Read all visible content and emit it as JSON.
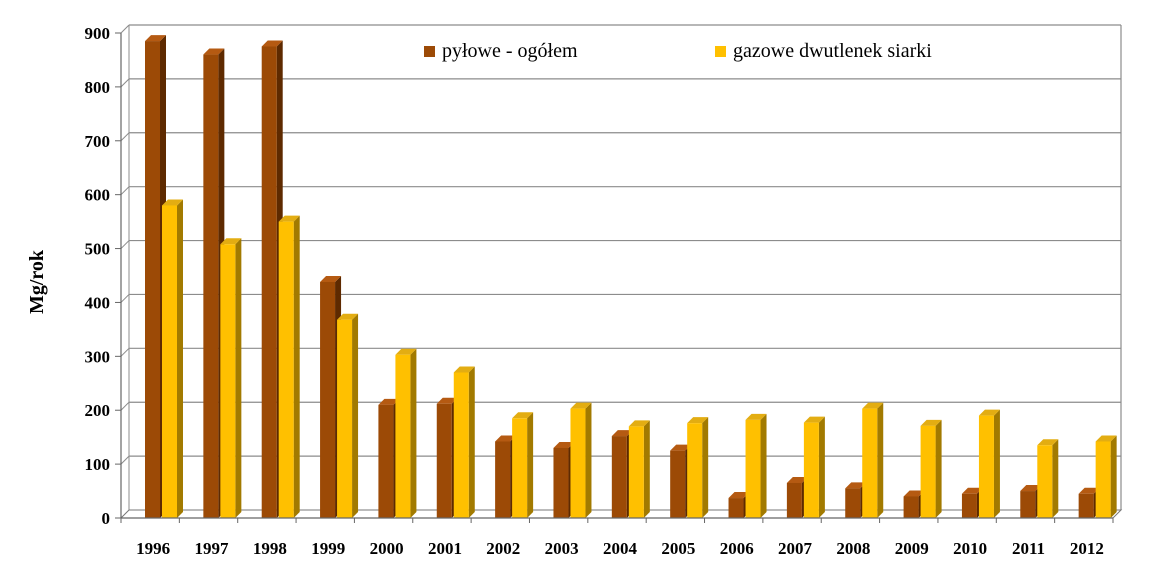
{
  "chart_data": {
    "type": "bar",
    "title": "",
    "xlabel": "",
    "ylabel": "Mg/rok",
    "ylim": [
      0,
      900
    ],
    "yticks": [
      0,
      100,
      200,
      300,
      400,
      500,
      600,
      700,
      800,
      900
    ],
    "grid": true,
    "legend_position": "top",
    "categories": [
      "1996",
      "1997",
      "1998",
      "1999",
      "2000",
      "2001",
      "2002",
      "2003",
      "2004",
      "2005",
      "2006",
      "2007",
      "2008",
      "2009",
      "2010",
      "2011",
      "2012"
    ],
    "series": [
      {
        "name": "pyłowe - ogółem",
        "color": "#9C4A06",
        "side_color": "#5E2A00",
        "top_color": "#B55A12",
        "values": [
          885,
          860,
          875,
          438,
          210,
          212,
          142,
          130,
          152,
          125,
          37,
          65,
          55,
          40,
          45,
          50,
          45
        ]
      },
      {
        "name": "gazowe dwutlenek siarki",
        "color": "#FFC000",
        "side_color": "#A27A00",
        "top_color": "#E3AD12",
        "values": [
          580,
          508,
          550,
          368,
          303,
          270,
          185,
          203,
          170,
          176,
          182,
          177,
          203,
          171,
          190,
          135,
          142
        ]
      }
    ]
  }
}
